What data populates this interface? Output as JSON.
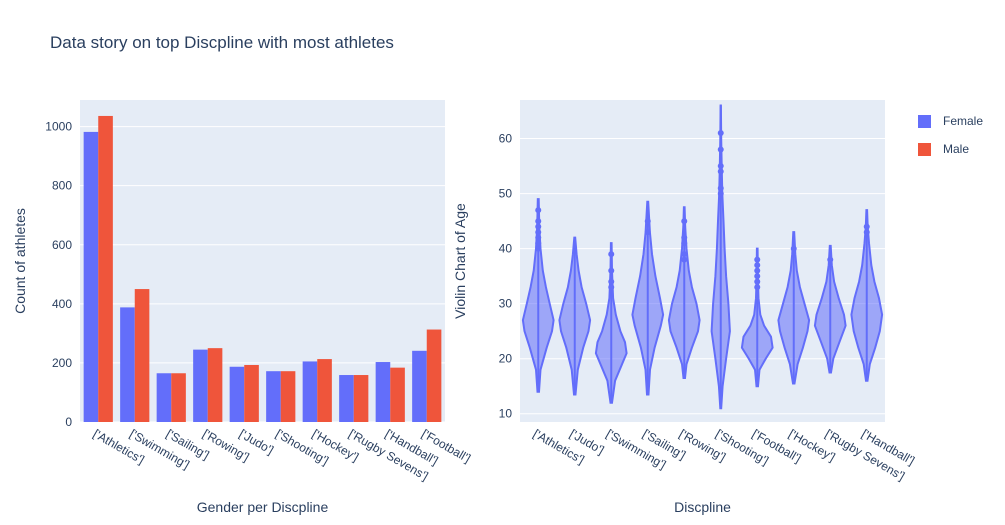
{
  "title": "Data story on top Discpline with most athletes",
  "legend": [
    {
      "name": "Female",
      "color": "#636efa"
    },
    {
      "name": "Male",
      "color": "#ef553b"
    }
  ],
  "chart_data": [
    {
      "type": "bar",
      "xlabel": "Gender per Discpline",
      "ylabel": "Count of athletes",
      "ylim": [
        0,
        1090
      ],
      "yticks": [
        0,
        200,
        400,
        600,
        800,
        1000
      ],
      "categories": [
        "['Athletics']",
        "['Swimming']",
        "['Sailing']",
        "['Rowing']",
        "['Judo']",
        "['Shooting']",
        "['Hockey']",
        "['Rugby Sevens']",
        "['Handball']",
        "['Football']"
      ],
      "series": [
        {
          "name": "Female",
          "color": "#636efa",
          "values": [
            982,
            388,
            165,
            245,
            187,
            172,
            205,
            159,
            203,
            241
          ]
        },
        {
          "name": "Male",
          "color": "#ef553b",
          "values": [
            1036,
            450,
            165,
            250,
            193,
            172,
            213,
            159,
            184,
            313
          ]
        }
      ],
      "grid": true
    },
    {
      "type": "violin",
      "xlabel": "Discpline",
      "ylabel": "Violin Chart of Age",
      "ylim": [
        8.5,
        67
      ],
      "yticks": [
        10,
        20,
        30,
        40,
        50,
        60
      ],
      "color": "#636efa",
      "categories": [
        "['Athletics']",
        "['Judo']",
        "['Swimming']",
        "['Sailing']",
        "['Rowing']",
        "['Shooting']",
        "['Football']",
        "['Hockey']",
        "['Rugby Sevens']",
        "['Handball']"
      ],
      "violins": [
        {
          "min": 14,
          "max": 49,
          "profile": [
            [
              14,
              0.05
            ],
            [
              18,
              0.15
            ],
            [
              22,
              0.55
            ],
            [
              25,
              0.9
            ],
            [
              27,
              1
            ],
            [
              30,
              0.75
            ],
            [
              33,
              0.5
            ],
            [
              36,
              0.3
            ],
            [
              40,
              0.15
            ],
            [
              44,
              0.07
            ],
            [
              49,
              0.03
            ]
          ],
          "outliers": [
            40,
            41,
            42,
            43,
            44,
            45,
            47
          ]
        },
        {
          "min": 13.5,
          "max": 42,
          "profile": [
            [
              13.5,
              0.05
            ],
            [
              18,
              0.2
            ],
            [
              22,
              0.55
            ],
            [
              25,
              0.9
            ],
            [
              27,
              1
            ],
            [
              30,
              0.75
            ],
            [
              33,
              0.45
            ],
            [
              36,
              0.25
            ],
            [
              39,
              0.12
            ],
            [
              42,
              0.03
            ]
          ],
          "outliers": []
        },
        {
          "min": 12,
          "max": 41,
          "profile": [
            [
              12,
              0.05
            ],
            [
              16,
              0.25
            ],
            [
              19,
              0.7
            ],
            [
              21,
              1
            ],
            [
              23,
              0.9
            ],
            [
              25,
              0.6
            ],
            [
              28,
              0.3
            ],
            [
              31,
              0.12
            ],
            [
              36,
              0.05
            ],
            [
              41,
              0.02
            ]
          ],
          "outliers": [
            33,
            34,
            36,
            39
          ]
        },
        {
          "min": 13.5,
          "max": 48.5,
          "profile": [
            [
              13.5,
              0.05
            ],
            [
              18,
              0.15
            ],
            [
              22,
              0.45
            ],
            [
              26,
              0.85
            ],
            [
              28,
              1
            ],
            [
              31,
              0.8
            ],
            [
              35,
              0.5
            ],
            [
              39,
              0.28
            ],
            [
              43,
              0.14
            ],
            [
              48.5,
              0.03
            ]
          ],
          "outliers": [
            43,
            45
          ]
        },
        {
          "min": 16.5,
          "max": 47.5,
          "profile": [
            [
              16.5,
              0.05
            ],
            [
              19,
              0.15
            ],
            [
              22,
              0.5
            ],
            [
              25,
              0.9
            ],
            [
              27,
              1
            ],
            [
              30,
              0.8
            ],
            [
              33,
              0.5
            ],
            [
              36,
              0.3
            ],
            [
              40,
              0.15
            ],
            [
              44,
              0.06
            ],
            [
              47.5,
              0.02
            ]
          ],
          "outliers": [
            38,
            39,
            41,
            42,
            45
          ]
        },
        {
          "min": 11,
          "max": 66,
          "profile": [
            [
              11,
              0.03
            ],
            [
              15,
              0.12
            ],
            [
              20,
              0.35
            ],
            [
              25,
              0.6
            ],
            [
              30,
              0.5
            ],
            [
              35,
              0.35
            ],
            [
              40,
              0.25
            ],
            [
              45,
              0.18
            ],
            [
              50,
              0.1
            ],
            [
              55,
              0.06
            ],
            [
              60,
              0.03
            ],
            [
              66,
              0.01
            ]
          ],
          "outliers": [
            50,
            51,
            54,
            55,
            58,
            61
          ]
        },
        {
          "min": 15,
          "max": 40,
          "profile": [
            [
              15,
              0.05
            ],
            [
              18,
              0.15
            ],
            [
              20,
              0.55
            ],
            [
              22,
              1
            ],
            [
              24,
              0.9
            ],
            [
              26,
              0.45
            ],
            [
              28,
              0.2
            ],
            [
              31,
              0.08
            ],
            [
              35,
              0.04
            ],
            [
              40,
              0.02
            ]
          ],
          "outliers": [
            33,
            34,
            35,
            36,
            37,
            38
          ]
        },
        {
          "min": 15.5,
          "max": 43,
          "profile": [
            [
              15.5,
              0.05
            ],
            [
              19,
              0.25
            ],
            [
              22,
              0.6
            ],
            [
              25,
              0.9
            ],
            [
              27,
              1
            ],
            [
              30,
              0.7
            ],
            [
              33,
              0.4
            ],
            [
              36,
              0.2
            ],
            [
              39,
              0.1
            ],
            [
              43,
              0.03
            ]
          ],
          "outliers": [
            40
          ]
        },
        {
          "min": 17.5,
          "max": 40.5,
          "profile": [
            [
              17.5,
              0.05
            ],
            [
              20,
              0.2
            ],
            [
              23,
              0.6
            ],
            [
              26,
              1
            ],
            [
              28,
              0.9
            ],
            [
              31,
              0.55
            ],
            [
              34,
              0.25
            ],
            [
              37,
              0.1
            ],
            [
              40.5,
              0.03
            ]
          ],
          "outliers": [
            38
          ]
        },
        {
          "min": 16,
          "max": 47,
          "profile": [
            [
              16,
              0.05
            ],
            [
              19,
              0.2
            ],
            [
              22,
              0.55
            ],
            [
              25,
              0.85
            ],
            [
              28,
              1
            ],
            [
              31,
              0.8
            ],
            [
              34,
              0.5
            ],
            [
              37,
              0.3
            ],
            [
              41,
              0.15
            ],
            [
              44,
              0.06
            ],
            [
              47,
              0.02
            ]
          ],
          "outliers": [
            43,
            44
          ]
        }
      ],
      "grid": true
    }
  ]
}
